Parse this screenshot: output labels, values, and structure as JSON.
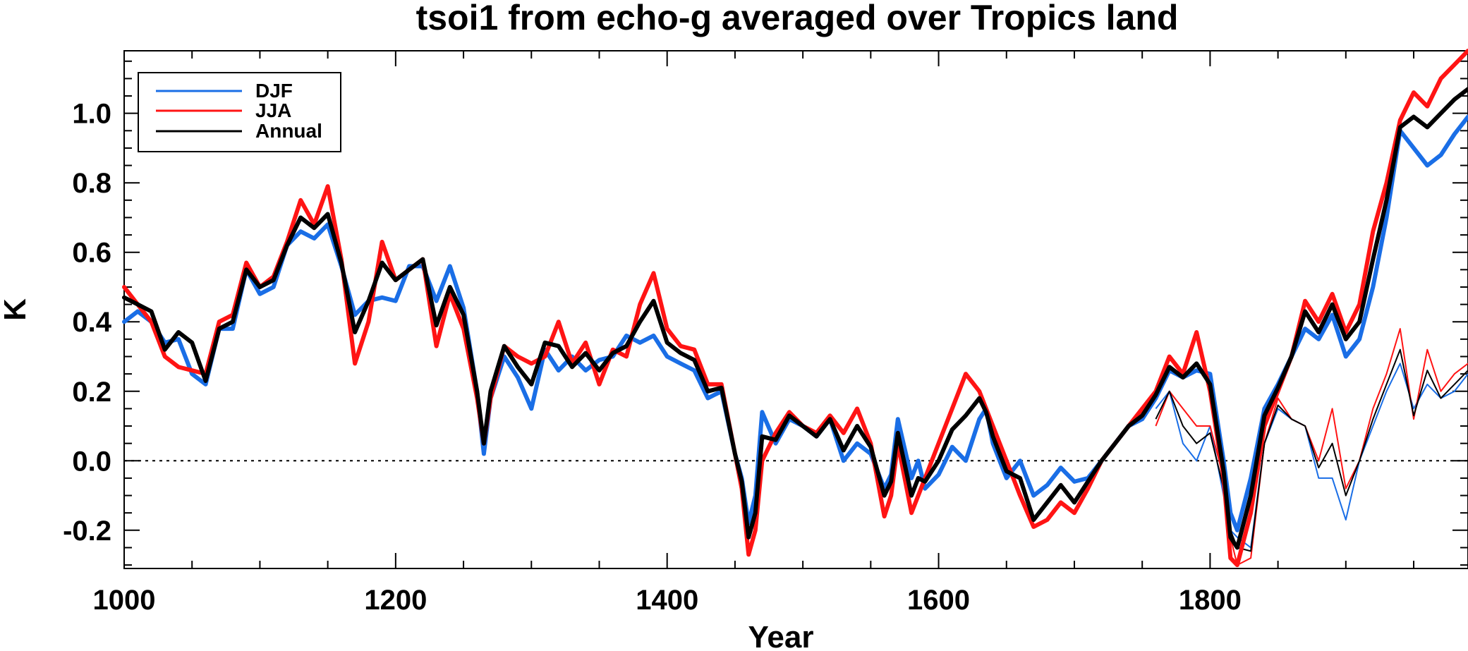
{
  "chart_data": {
    "type": "line",
    "title": "tsoi1 from echo-g averaged over Tropics land",
    "xlabel": "Year",
    "ylabel": "K",
    "xlim": [
      1000,
      1990
    ],
    "ylim": [
      -0.31,
      1.18
    ],
    "xticks": [
      1000,
      1200,
      1400,
      1600,
      1800
    ],
    "xtick_labels": [
      "1000",
      "1200",
      "1400",
      "1600",
      "1800"
    ],
    "yticks": [
      -0.2,
      0.0,
      0.2,
      0.4,
      0.6,
      0.8,
      1.0
    ],
    "ytick_labels": [
      "-0.2",
      "0.0",
      "0.2",
      "0.4",
      "0.6",
      "0.8",
      "1.0"
    ],
    "reference_line": 0.0,
    "legend_position": "top-left",
    "x": [
      1000,
      1010,
      1020,
      1030,
      1040,
      1050,
      1060,
      1070,
      1080,
      1090,
      1100,
      1110,
      1120,
      1130,
      1140,
      1150,
      1160,
      1170,
      1180,
      1190,
      1200,
      1210,
      1220,
      1230,
      1240,
      1250,
      1260,
      1265,
      1270,
      1280,
      1290,
      1300,
      1310,
      1320,
      1330,
      1340,
      1350,
      1360,
      1370,
      1380,
      1390,
      1400,
      1410,
      1420,
      1430,
      1440,
      1450,
      1455,
      1460,
      1465,
      1470,
      1480,
      1490,
      1500,
      1510,
      1520,
      1530,
      1540,
      1550,
      1560,
      1565,
      1570,
      1580,
      1585,
      1590,
      1600,
      1610,
      1620,
      1630,
      1635,
      1640,
      1650,
      1660,
      1670,
      1680,
      1690,
      1700,
      1710,
      1720,
      1730,
      1740,
      1750,
      1760,
      1770,
      1780,
      1790,
      1800,
      1810,
      1815,
      1820,
      1830,
      1840,
      1850,
      1860,
      1870,
      1880,
      1890,
      1900,
      1910,
      1920,
      1930,
      1940,
      1950,
      1960,
      1970,
      1980,
      1990
    ],
    "series": [
      {
        "name": "DJF",
        "color": "#1a6ee6",
        "values": [
          0.4,
          0.43,
          0.4,
          0.34,
          0.35,
          0.25,
          0.22,
          0.38,
          0.38,
          0.55,
          0.48,
          0.5,
          0.62,
          0.66,
          0.64,
          0.68,
          0.56,
          0.42,
          0.46,
          0.47,
          0.46,
          0.56,
          0.56,
          0.46,
          0.56,
          0.44,
          0.2,
          0.02,
          0.18,
          0.3,
          0.24,
          0.15,
          0.32,
          0.26,
          0.3,
          0.26,
          0.29,
          0.3,
          0.36,
          0.34,
          0.36,
          0.3,
          0.28,
          0.26,
          0.18,
          0.2,
          0.02,
          -0.05,
          -0.18,
          -0.1,
          0.14,
          0.05,
          0.12,
          0.1,
          0.07,
          0.12,
          0.0,
          0.05,
          0.02,
          -0.08,
          -0.04,
          0.12,
          -0.05,
          0.0,
          -0.08,
          -0.04,
          0.04,
          0.0,
          0.12,
          0.15,
          0.05,
          -0.05,
          0.0,
          -0.1,
          -0.07,
          -0.02,
          -0.06,
          -0.05,
          0.0,
          0.05,
          0.1,
          0.12,
          0.18,
          0.26,
          0.24,
          0.26,
          0.25,
          0.0,
          -0.15,
          -0.2,
          -0.05,
          0.15,
          0.22,
          0.3,
          0.38,
          0.35,
          0.42,
          0.3,
          0.35,
          0.5,
          0.7,
          0.95,
          0.9,
          0.85,
          0.88,
          0.94,
          0.99
        ]
      },
      {
        "name": "JJA",
        "color": "#ff1414",
        "values": [
          0.5,
          0.45,
          0.4,
          0.3,
          0.27,
          0.26,
          0.25,
          0.4,
          0.42,
          0.57,
          0.5,
          0.53,
          0.63,
          0.75,
          0.68,
          0.79,
          0.58,
          0.28,
          0.4,
          0.63,
          0.52,
          0.55,
          0.58,
          0.33,
          0.48,
          0.38,
          0.18,
          0.05,
          0.18,
          0.33,
          0.3,
          0.28,
          0.3,
          0.4,
          0.28,
          0.34,
          0.22,
          0.32,
          0.3,
          0.45,
          0.54,
          0.38,
          0.33,
          0.32,
          0.22,
          0.22,
          0.02,
          -0.08,
          -0.27,
          -0.2,
          0.0,
          0.08,
          0.14,
          0.1,
          0.08,
          0.13,
          0.08,
          0.15,
          0.05,
          -0.16,
          -0.1,
          0.05,
          -0.15,
          -0.1,
          -0.05,
          0.05,
          0.15,
          0.25,
          0.2,
          0.15,
          0.1,
          0.0,
          -0.1,
          -0.19,
          -0.17,
          -0.12,
          -0.15,
          -0.08,
          0.0,
          0.05,
          0.1,
          0.15,
          0.2,
          0.3,
          0.25,
          0.37,
          0.2,
          -0.05,
          -0.28,
          -0.3,
          -0.15,
          0.1,
          0.2,
          0.3,
          0.46,
          0.4,
          0.48,
          0.37,
          0.45,
          0.66,
          0.8,
          0.98,
          1.06,
          1.02,
          1.1,
          1.14,
          1.18
        ]
      },
      {
        "name": "Annual",
        "color": "#000000",
        "values": [
          0.47,
          0.45,
          0.43,
          0.32,
          0.37,
          0.34,
          0.23,
          0.38,
          0.4,
          0.55,
          0.5,
          0.52,
          0.62,
          0.7,
          0.67,
          0.71,
          0.57,
          0.37,
          0.46,
          0.57,
          0.52,
          0.55,
          0.58,
          0.39,
          0.5,
          0.42,
          0.2,
          0.05,
          0.2,
          0.33,
          0.27,
          0.22,
          0.34,
          0.33,
          0.27,
          0.31,
          0.26,
          0.31,
          0.33,
          0.4,
          0.46,
          0.34,
          0.31,
          0.29,
          0.2,
          0.21,
          0.02,
          -0.06,
          -0.22,
          -0.15,
          0.07,
          0.06,
          0.13,
          0.1,
          0.07,
          0.12,
          0.03,
          0.1,
          0.04,
          -0.1,
          -0.06,
          0.08,
          -0.1,
          -0.05,
          -0.06,
          0.0,
          0.09,
          0.13,
          0.18,
          0.14,
          0.07,
          -0.03,
          -0.05,
          -0.17,
          -0.12,
          -0.07,
          -0.12,
          -0.06,
          0.0,
          0.05,
          0.1,
          0.13,
          0.19,
          0.27,
          0.24,
          0.28,
          0.22,
          -0.03,
          -0.22,
          -0.25,
          -0.1,
          0.13,
          0.21,
          0.3,
          0.43,
          0.37,
          0.45,
          0.35,
          0.4,
          0.58,
          0.75,
          0.96,
          0.99,
          0.96,
          1.0,
          1.04,
          1.07
        ]
      }
    ],
    "thin_series": {
      "x": [
        1760,
        1770,
        1780,
        1790,
        1800,
        1810,
        1815,
        1820,
        1830,
        1840,
        1850,
        1860,
        1870,
        1880,
        1890,
        1900,
        1910,
        1920,
        1930,
        1940,
        1950,
        1960,
        1970,
        1980,
        1990
      ],
      "series": [
        {
          "name": "DJF",
          "color": "#1a6ee6",
          "values": [
            0.15,
            0.2,
            0.05,
            0.0,
            0.1,
            -0.1,
            -0.2,
            -0.22,
            -0.25,
            0.05,
            0.15,
            0.12,
            0.1,
            -0.05,
            -0.05,
            -0.17,
            0.0,
            0.1,
            0.2,
            0.28,
            0.15,
            0.22,
            0.18,
            0.2,
            0.25
          ]
        },
        {
          "name": "JJA",
          "color": "#ff1414",
          "values": [
            0.1,
            0.2,
            0.15,
            0.1,
            0.1,
            -0.05,
            -0.22,
            -0.3,
            -0.28,
            0.05,
            0.18,
            0.12,
            0.1,
            0.0,
            0.15,
            -0.08,
            0.0,
            0.15,
            0.25,
            0.38,
            0.12,
            0.32,
            0.2,
            0.25,
            0.28
          ]
        },
        {
          "name": "Annual",
          "color": "#000000",
          "values": [
            0.12,
            0.2,
            0.1,
            0.05,
            0.08,
            -0.08,
            -0.2,
            -0.25,
            -0.26,
            0.05,
            0.16,
            0.12,
            0.1,
            -0.02,
            0.05,
            -0.1,
            0.0,
            0.12,
            0.22,
            0.32,
            0.13,
            0.26,
            0.18,
            0.22,
            0.26
          ]
        }
      ]
    }
  }
}
